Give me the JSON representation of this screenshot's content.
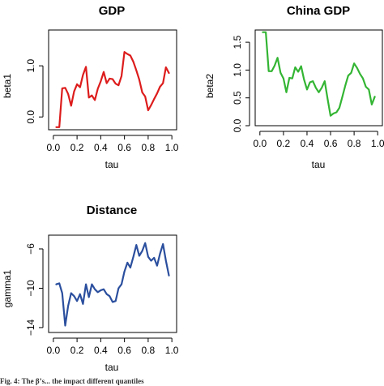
{
  "caption": "Fig. 4: The β’s... the impact different quantiles",
  "chart_data": [
    {
      "type": "line",
      "title": "GDP",
      "xlabel": "tau",
      "ylabel": "beta1",
      "xlim": [
        0,
        1
      ],
      "ylim": [
        -0.25,
        1.7
      ],
      "xticks": [
        0.0,
        0.2,
        0.4,
        0.6,
        0.8,
        1.0
      ],
      "xtick_labels": [
        "0.0",
        "0.2",
        "0.4",
        "0.6",
        "0.8",
        "1.0"
      ],
      "yticks": [
        0.0,
        1.0
      ],
      "ytick_labels": [
        "0.0",
        "1.0"
      ],
      "color": "#dd1c1c",
      "x": [
        0.025,
        0.05,
        0.075,
        0.1,
        0.125,
        0.15,
        0.175,
        0.2,
        0.225,
        0.25,
        0.275,
        0.3,
        0.325,
        0.35,
        0.375,
        0.4,
        0.425,
        0.45,
        0.475,
        0.5,
        0.525,
        0.55,
        0.575,
        0.6,
        0.625,
        0.65,
        0.675,
        0.7,
        0.725,
        0.75,
        0.775,
        0.8,
        0.825,
        0.85,
        0.875,
        0.9,
        0.925,
        0.95,
        0.975
      ],
      "y": [
        -0.2,
        -0.2,
        0.56,
        0.57,
        0.45,
        0.22,
        0.5,
        0.64,
        0.58,
        0.82,
        0.98,
        0.38,
        0.42,
        0.33,
        0.55,
        0.7,
        0.88,
        0.66,
        0.75,
        0.74,
        0.65,
        0.62,
        0.8,
        1.27,
        1.23,
        1.2,
        1.08,
        0.91,
        0.73,
        0.48,
        0.4,
        0.13,
        0.23,
        0.35,
        0.46,
        0.59,
        0.66,
        0.97,
        0.86
      ]
    },
    {
      "type": "line",
      "title": "China GDP",
      "xlabel": "tau",
      "ylabel": "beta2",
      "xlim": [
        0,
        1
      ],
      "ylim": [
        0,
        1.72
      ],
      "xticks": [
        0.0,
        0.2,
        0.4,
        0.6,
        0.8,
        1.0
      ],
      "xtick_labels": [
        "0.0",
        "0.2",
        "0.4",
        "0.6",
        "0.8",
        "1.0"
      ],
      "yticks": [
        0.0,
        0.5,
        1.0,
        1.5
      ],
      "ytick_labels": [
        "0.0",
        "0.5",
        "1.0",
        "1.5"
      ],
      "color": "#33b533",
      "x": [
        0.025,
        0.05,
        0.075,
        0.1,
        0.125,
        0.15,
        0.175,
        0.2,
        0.225,
        0.25,
        0.275,
        0.3,
        0.325,
        0.35,
        0.375,
        0.4,
        0.425,
        0.45,
        0.475,
        0.5,
        0.525,
        0.55,
        0.575,
        0.6,
        0.625,
        0.65,
        0.675,
        0.7,
        0.725,
        0.75,
        0.775,
        0.8,
        0.825,
        0.85,
        0.875,
        0.9,
        0.925,
        0.95,
        0.975
      ],
      "y": [
        1.68,
        1.68,
        0.98,
        0.98,
        1.08,
        1.22,
        0.95,
        0.85,
        0.6,
        0.86,
        0.85,
        1.05,
        0.97,
        1.07,
        0.83,
        0.65,
        0.78,
        0.8,
        0.68,
        0.6,
        0.68,
        0.8,
        0.48,
        0.18,
        0.22,
        0.24,
        0.32,
        0.52,
        0.72,
        0.9,
        0.95,
        1.12,
        1.04,
        0.93,
        0.85,
        0.7,
        0.65,
        0.38,
        0.52
      ]
    },
    {
      "type": "line",
      "title": "Distance",
      "xlabel": "tau",
      "ylabel": "gamma1",
      "xlim": [
        0,
        1
      ],
      "ylim": [
        -14.5,
        -4.6
      ],
      "xticks": [
        0.0,
        0.2,
        0.4,
        0.6,
        0.8,
        1.0
      ],
      "xtick_labels": [
        "0.0",
        "0.2",
        "0.4",
        "0.6",
        "0.8",
        "1.0"
      ],
      "yticks": [
        -14,
        -10,
        -6
      ],
      "ytick_labels": [
        "−14",
        "−10",
        "−6"
      ],
      "color": "#2b4f9e",
      "x": [
        0.025,
        0.05,
        0.075,
        0.1,
        0.125,
        0.15,
        0.175,
        0.2,
        0.225,
        0.25,
        0.275,
        0.3,
        0.325,
        0.35,
        0.375,
        0.4,
        0.425,
        0.45,
        0.475,
        0.5,
        0.525,
        0.55,
        0.575,
        0.6,
        0.625,
        0.65,
        0.675,
        0.7,
        0.725,
        0.75,
        0.775,
        0.8,
        0.825,
        0.85,
        0.875,
        0.9,
        0.925,
        0.95,
        0.975
      ],
      "y": [
        -9.6,
        -9.5,
        -10.5,
        -13.8,
        -11.8,
        -10.5,
        -10.8,
        -11.3,
        -10.6,
        -11.6,
        -9.6,
        -10.9,
        -9.6,
        -10.1,
        -10.4,
        -10.2,
        -10.1,
        -10.6,
        -10.8,
        -11.4,
        -11.3,
        -10.0,
        -9.6,
        -8.3,
        -7.4,
        -7.9,
        -6.8,
        -5.6,
        -6.7,
        -6.2,
        -5.4,
        -6.8,
        -7.2,
        -6.9,
        -7.7,
        -6.5,
        -5.5,
        -7.2,
        -8.7
      ]
    }
  ]
}
